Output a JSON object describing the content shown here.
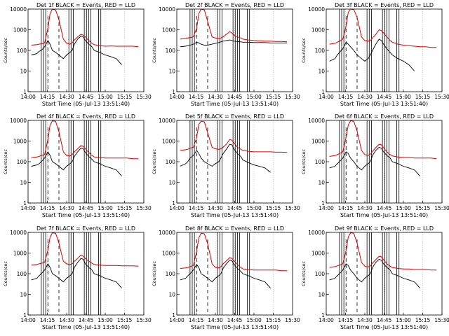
{
  "figure": {
    "label_x": "Start Time (05-Jul-13 13:51:40)",
    "label_y": "Counts/sec",
    "colors": {
      "events": "#000000",
      "lld": "#dd0000"
    }
  },
  "chart_data": [
    {
      "type": "line",
      "title": "Det 1f BLACK = Events, RED = LLD",
      "xlabel": "Start Time (05-Jul-13 13:51:40)",
      "ylabel": "Counts/sec",
      "xticks": [
        "14:00",
        "14:15",
        "14:30",
        "14:45",
        "15:00",
        "15:15",
        "15:30"
      ],
      "yticks": [
        "1",
        "10",
        "100",
        "1000",
        "10000"
      ],
      "xlim_min": [
        0,
        105
      ],
      "ylim": [
        1,
        10000
      ],
      "scale_y": "log",
      "x": [
        3,
        8,
        10,
        12,
        15,
        18,
        20,
        22,
        25,
        28,
        32,
        35,
        38,
        40,
        42,
        45,
        48,
        50,
        52,
        55,
        58,
        60,
        65,
        70,
        75,
        80,
        85,
        90,
        95,
        100
      ],
      "series": [
        {
          "name": "LLD",
          "values": [
            180,
            190,
            200,
            210,
            230,
            1200,
            6000,
            10000,
            9000,
            3000,
            350,
            220,
            200,
            230,
            320,
            450,
            600,
            550,
            450,
            300,
            220,
            190,
            170,
            160,
            165,
            160,
            160,
            160,
            160,
            150
          ]
        },
        {
          "name": "Events",
          "values": [
            60,
            70,
            90,
            100,
            150,
            300,
            200,
            100,
            80,
            60,
            40,
            60,
            80,
            100,
            200,
            350,
            500,
            450,
            300,
            200,
            150,
            100,
            80,
            60,
            50,
            40,
            20,
            null,
            null,
            null
          ]
        }
      ]
    },
    {
      "type": "line",
      "title": "Det 2f BLACK = Events, RED = LLD",
      "xlabel": "Start Time (05-Jul-13 13:51:40)",
      "ylabel": "Counts/sec",
      "xticks": [
        "14:00",
        "14:15",
        "14:30",
        "14:45",
        "15:00",
        "15:15",
        "15:30"
      ],
      "yticks": [
        "1",
        "10",
        "100",
        "1000",
        "10000"
      ],
      "xlim_min": [
        0,
        105
      ],
      "ylim": [
        1,
        10000
      ],
      "scale_y": "log",
      "x": [
        3,
        8,
        10,
        12,
        15,
        18,
        20,
        22,
        25,
        28,
        32,
        35,
        38,
        40,
        42,
        45,
        48,
        50,
        52,
        55,
        58,
        60,
        65,
        70,
        75,
        80,
        85,
        90,
        95,
        100
      ],
      "series": [
        {
          "name": "LLD",
          "values": [
            350,
            380,
            400,
            420,
            450,
            1200,
            6000,
            10000,
            9000,
            2500,
            450,
            400,
            380,
            400,
            450,
            600,
            800,
            700,
            550,
            450,
            400,
            350,
            320,
            300,
            290,
            280,
            280,
            270,
            270,
            260
          ]
        },
        {
          "name": "Events",
          "values": [
            150,
            160,
            170,
            180,
            200,
            250,
            230,
            200,
            180,
            180,
            200,
            220,
            240,
            260,
            280,
            300,
            320,
            300,
            280,
            270,
            260,
            250,
            250,
            240,
            240,
            240,
            230,
            230,
            230,
            230
          ]
        }
      ]
    },
    {
      "type": "line",
      "title": "Det 3f BLACK = Events, RED = LLD",
      "xlabel": "Start Time (05-Jul-13 13:51:40)",
      "ylabel": "Counts/sec",
      "xticks": [
        "14:00",
        "14:15",
        "14:30",
        "14:45",
        "15:00",
        "15:15",
        "15:30"
      ],
      "yticks": [
        "1",
        "10",
        "100",
        "1000",
        "10000"
      ],
      "xlim_min": [
        0,
        105
      ],
      "ylim": [
        1,
        10000
      ],
      "scale_y": "log",
      "x": [
        3,
        8,
        10,
        12,
        15,
        18,
        20,
        22,
        25,
        28,
        32,
        35,
        38,
        40,
        42,
        45,
        48,
        50,
        52,
        55,
        58,
        60,
        65,
        70,
        75,
        80,
        85,
        90,
        95,
        100
      ],
      "series": [
        {
          "name": "LLD",
          "values": [
            200,
            220,
            250,
            280,
            350,
            1500,
            7000,
            10000,
            9500,
            4000,
            450,
            300,
            280,
            300,
            400,
            600,
            1000,
            900,
            700,
            450,
            300,
            250,
            200,
            180,
            170,
            160,
            150,
            150,
            140,
            140
          ]
        },
        {
          "name": "Events",
          "values": [
            30,
            40,
            60,
            80,
            120,
            250,
            200,
            150,
            100,
            60,
            40,
            30,
            40,
            60,
            100,
            200,
            350,
            300,
            200,
            120,
            80,
            60,
            40,
            30,
            20,
            10,
            null,
            null,
            null,
            null
          ]
        }
      ]
    },
    {
      "type": "line",
      "title": "Det 4f BLACK = Events, RED = LLD",
      "xlabel": "Start Time (05-Jul-13 13:51:40)",
      "ylabel": "Counts/sec",
      "xticks": [
        "14:00",
        "14:15",
        "14:30",
        "14:45",
        "15:00",
        "15:15",
        "15:30"
      ],
      "yticks": [
        "1",
        "10",
        "100",
        "1000",
        "10000"
      ],
      "xlim_min": [
        0,
        105
      ],
      "ylim": [
        1,
        10000
      ],
      "scale_y": "log",
      "x": [
        3,
        8,
        10,
        12,
        15,
        18,
        20,
        22,
        25,
        28,
        32,
        35,
        38,
        40,
        42,
        45,
        48,
        50,
        52,
        55,
        58,
        60,
        65,
        70,
        75,
        80,
        85,
        90,
        95,
        100
      ],
      "series": [
        {
          "name": "LLD",
          "values": [
            160,
            170,
            180,
            200,
            220,
            1200,
            6000,
            9500,
            9000,
            2800,
            300,
            200,
            190,
            220,
            300,
            420,
            600,
            550,
            420,
            280,
            200,
            170,
            160,
            150,
            150,
            150,
            150,
            150,
            140,
            140
          ]
        },
        {
          "name": "Events",
          "values": [
            60,
            70,
            80,
            100,
            150,
            300,
            200,
            100,
            80,
            60,
            40,
            60,
            80,
            100,
            180,
            300,
            450,
            420,
            280,
            180,
            130,
            100,
            80,
            60,
            50,
            40,
            20,
            null,
            null,
            null
          ]
        }
      ]
    },
    {
      "type": "line",
      "title": "Det 5f BLACK = Events, RED = LLD",
      "xlabel": "Start Time (05-Jul-13 13:51:40)",
      "ylabel": "Counts/sec",
      "xticks": [
        "14:00",
        "14:15",
        "14:30",
        "14:45",
        "15:00",
        "15:15",
        "15:30"
      ],
      "yticks": [
        "1",
        "10",
        "100",
        "1000",
        "10000"
      ],
      "xlim_min": [
        0,
        105
      ],
      "ylim": [
        1,
        10000
      ],
      "scale_y": "log",
      "x": [
        3,
        8,
        10,
        12,
        15,
        18,
        20,
        22,
        25,
        28,
        32,
        35,
        38,
        40,
        42,
        45,
        48,
        50,
        52,
        55,
        58,
        60,
        65,
        70,
        75,
        80,
        85,
        90,
        95,
        100
      ],
      "series": [
        {
          "name": "LLD",
          "values": [
            350,
            380,
            400,
            450,
            500,
            1500,
            6500,
            9000,
            8500,
            2500,
            500,
            420,
            400,
            420,
            500,
            700,
            1200,
            1100,
            800,
            500,
            400,
            350,
            320,
            300,
            300,
            300,
            300,
            290,
            290,
            280
          ]
        },
        {
          "name": "Events",
          "values": [
            60,
            80,
            100,
            150,
            200,
            350,
            250,
            150,
            100,
            80,
            60,
            80,
            100,
            150,
            250,
            400,
            700,
            650,
            400,
            250,
            180,
            120,
            90,
            70,
            60,
            50,
            30,
            null,
            null,
            null
          ]
        }
      ]
    },
    {
      "type": "line",
      "title": "Det 6f BLACK = Events, RED = LLD",
      "xlabel": "Start Time (05-Jul-13 13:51:40)",
      "ylabel": "Counts/sec",
      "xticks": [
        "14:00",
        "14:15",
        "14:30",
        "14:45",
        "15:00",
        "15:15",
        "15:30"
      ],
      "yticks": [
        "1",
        "10",
        "100",
        "1000",
        "10000"
      ],
      "xlim_min": [
        0,
        105
      ],
      "ylim": [
        1,
        10000
      ],
      "scale_y": "log",
      "x": [
        3,
        8,
        10,
        12,
        15,
        18,
        20,
        22,
        25,
        28,
        32,
        35,
        38,
        40,
        42,
        45,
        48,
        50,
        52,
        55,
        58,
        60,
        65,
        70,
        75,
        80,
        85,
        90,
        95,
        100
      ],
      "series": [
        {
          "name": "LLD",
          "values": [
            180,
            200,
            220,
            250,
            300,
            1500,
            6000,
            9500,
            9000,
            3000,
            350,
            220,
            200,
            230,
            320,
            480,
            700,
            650,
            480,
            300,
            220,
            190,
            170,
            160,
            160,
            150,
            150,
            150,
            150,
            140
          ]
        },
        {
          "name": "Events",
          "values": [
            50,
            60,
            80,
            100,
            150,
            300,
            250,
            150,
            100,
            60,
            40,
            60,
            80,
            100,
            200,
            350,
            500,
            450,
            300,
            200,
            150,
            100,
            80,
            60,
            50,
            40,
            20,
            null,
            null,
            null
          ]
        }
      ]
    },
    {
      "type": "line",
      "title": "Det 7f BLACK = Events, RED = LLD",
      "xlabel": "Start Time (05-Jul-13 13:51:40)",
      "ylabel": "Counts/sec",
      "xticks": [
        "14:00",
        "14:15",
        "14:30",
        "14:45",
        "15:00",
        "15:15",
        "15:30"
      ],
      "yticks": [
        "1",
        "10",
        "100",
        "1000",
        "10000"
      ],
      "xlim_min": [
        0,
        105
      ],
      "ylim": [
        1,
        10000
      ],
      "scale_y": "log",
      "x": [
        3,
        8,
        10,
        12,
        15,
        18,
        20,
        22,
        25,
        28,
        32,
        35,
        38,
        40,
        42,
        45,
        48,
        50,
        52,
        55,
        58,
        60,
        65,
        70,
        75,
        80,
        85,
        90,
        95,
        100
      ],
      "series": [
        {
          "name": "LLD",
          "values": [
            260,
            280,
            300,
            320,
            350,
            1400,
            6000,
            9500,
            9000,
            3000,
            400,
            300,
            280,
            300,
            400,
            550,
            800,
            700,
            550,
            400,
            320,
            280,
            260,
            250,
            250,
            250,
            240,
            240,
            240,
            230
          ]
        },
        {
          "name": "Events",
          "values": [
            50,
            60,
            80,
            100,
            150,
            300,
            200,
            100,
            80,
            60,
            40,
            60,
            80,
            100,
            200,
            350,
            550,
            500,
            300,
            200,
            150,
            100,
            80,
            60,
            50,
            40,
            20,
            null,
            null,
            null
          ]
        }
      ]
    },
    {
      "type": "line",
      "title": "Det 8f BLACK = Events, RED = LLD",
      "xlabel": "Start Time (05-Jul-13 13:51:40)",
      "ylabel": "Counts/sec",
      "xticks": [
        "14:00",
        "14:15",
        "14:30",
        "14:45",
        "15:00",
        "15:15",
        "15:30"
      ],
      "yticks": [
        "1",
        "10",
        "100",
        "1000",
        "10000"
      ],
      "xlim_min": [
        0,
        105
      ],
      "ylim": [
        1,
        10000
      ],
      "scale_y": "log",
      "x": [
        3,
        8,
        10,
        12,
        15,
        18,
        20,
        22,
        25,
        28,
        32,
        35,
        38,
        40,
        42,
        45,
        48,
        50,
        52,
        55,
        58,
        60,
        65,
        70,
        75,
        80,
        85,
        90,
        95,
        100
      ],
      "series": [
        {
          "name": "LLD",
          "values": [
            180,
            190,
            200,
            220,
            250,
            1200,
            5500,
            9000,
            8500,
            2800,
            300,
            200,
            190,
            220,
            300,
            420,
            600,
            550,
            420,
            280,
            200,
            170,
            160,
            150,
            150,
            150,
            150,
            150,
            140,
            140
          ]
        },
        {
          "name": "Events",
          "values": [
            50,
            60,
            80,
            100,
            150,
            280,
            200,
            100,
            80,
            60,
            40,
            60,
            80,
            100,
            180,
            300,
            450,
            420,
            280,
            180,
            130,
            100,
            80,
            60,
            50,
            40,
            20,
            null,
            null,
            null
          ]
        }
      ]
    },
    {
      "type": "line",
      "title": "Det 9f BLACK = Events, RED = LLD",
      "xlabel": "Start Time (05-Jul-13 13:51:40)",
      "ylabel": "Counts/sec",
      "xticks": [
        "14:00",
        "14:15",
        "14:30",
        "14:45",
        "15:00",
        "15:15",
        "15:30"
      ],
      "yticks": [
        "1",
        "10",
        "100",
        "1000",
        "10000"
      ],
      "xlim_min": [
        0,
        105
      ],
      "ylim": [
        1,
        10000
      ],
      "scale_y": "log",
      "x": [
        3,
        8,
        10,
        12,
        15,
        18,
        20,
        22,
        25,
        28,
        32,
        35,
        38,
        40,
        42,
        45,
        48,
        50,
        52,
        55,
        58,
        60,
        65,
        70,
        75,
        80,
        85,
        90,
        95,
        100
      ],
      "series": [
        {
          "name": "LLD",
          "values": [
            200,
            220,
            240,
            260,
            300,
            1300,
            6000,
            9500,
            9000,
            3000,
            350,
            230,
            210,
            240,
            330,
            480,
            700,
            650,
            480,
            300,
            230,
            200,
            180,
            170,
            170,
            160,
            160,
            160,
            150,
            150
          ]
        },
        {
          "name": "Events",
          "values": [
            50,
            60,
            80,
            100,
            150,
            300,
            250,
            150,
            100,
            60,
            40,
            60,
            80,
            100,
            200,
            350,
            500,
            450,
            300,
            200,
            150,
            100,
            80,
            60,
            50,
            40,
            20,
            null,
            null,
            null
          ]
        }
      ]
    }
  ]
}
